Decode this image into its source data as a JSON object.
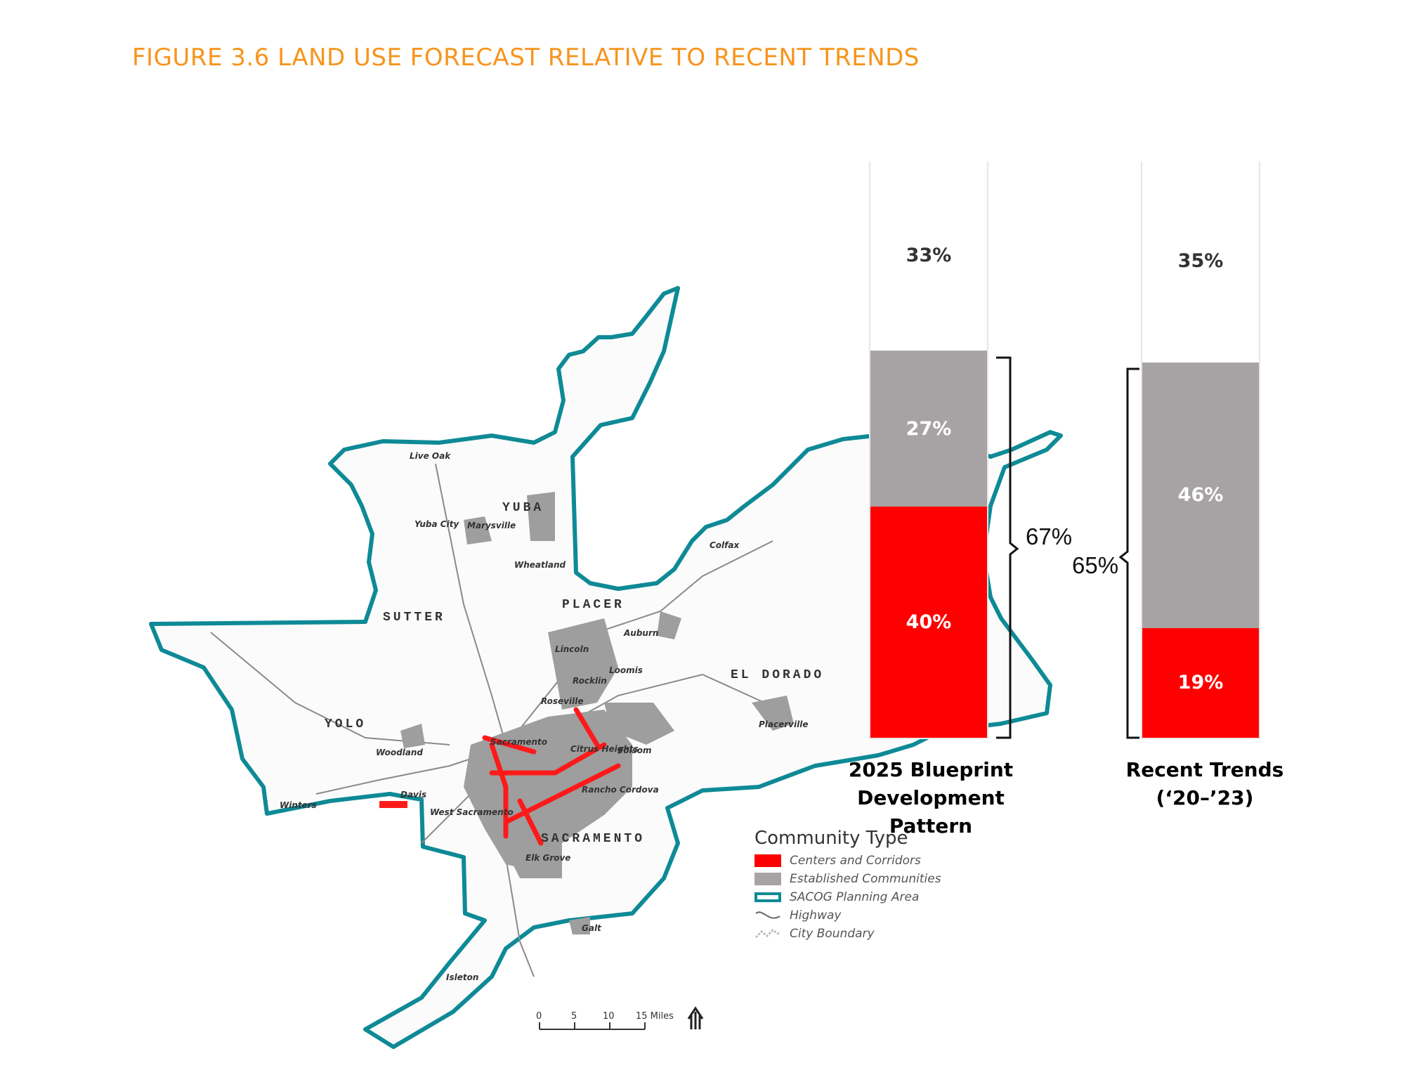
{
  "title": "FIGURE 3.6 LAND USE FORECAST RELATIVE TO RECENT TRENDS",
  "colors": {
    "title": "#f7941d",
    "centers_corridors": "#ff0000",
    "established": "#a7a3a4",
    "boundary": "#0e8a96"
  },
  "map": {
    "counties": [
      "YUBA",
      "SUTTER",
      "PLACER",
      "EL DORADO",
      "YOLO",
      "SACRAMENTO"
    ],
    "cities": [
      "Live Oak",
      "Yuba City",
      "Marysville",
      "Wheatland",
      "Colfax",
      "Auburn",
      "Lincoln",
      "Loomis",
      "Rocklin",
      "Roseville",
      "Citrus Heights",
      "Folsom",
      "Placerville",
      "Sacramento",
      "Woodland",
      "Davis",
      "West Sacramento",
      "Winters",
      "Rancho Cordova",
      "Elk Grove",
      "Galt",
      "Isleton"
    ],
    "scale_ticks": [
      "0",
      "5",
      "10",
      "15 Miles"
    ]
  },
  "legend": {
    "title": "Community Type",
    "items": [
      {
        "label": "Centers and Corridors",
        "color": "#ff0000"
      },
      {
        "label": "Established Communities",
        "color": "#a7a3a4"
      },
      {
        "label": "SACOG Planning Area",
        "color": "#0e8a96"
      },
      {
        "label": "Highway",
        "color": "#666666"
      },
      {
        "label": "City Boundary",
        "color": "#bbbbbb"
      }
    ]
  },
  "chart_data": {
    "type": "bar",
    "stacked": true,
    "categories": [
      "2025 Blueprint Development Pattern",
      "Recent Trends (‘20–’23)"
    ],
    "category_lines": [
      [
        "2025 Blueprint",
        "Development Pattern"
      ],
      [
        "Recent Trends (‘20–’23)"
      ]
    ],
    "series": [
      {
        "color": "#ff0000",
        "values": [
          40,
          19
        ],
        "labels": [
          "40%",
          "19%"
        ]
      },
      {
        "color": "#a7a3a4",
        "values": [
          27,
          46
        ],
        "labels": [
          "27%",
          "46%"
        ]
      },
      {
        "color": "#ffffff",
        "values": [
          33,
          35
        ],
        "labels": [
          "33%",
          "35%"
        ]
      }
    ],
    "brace_totals": [
      "67%",
      "65%"
    ],
    "ylim": [
      0,
      100
    ]
  }
}
